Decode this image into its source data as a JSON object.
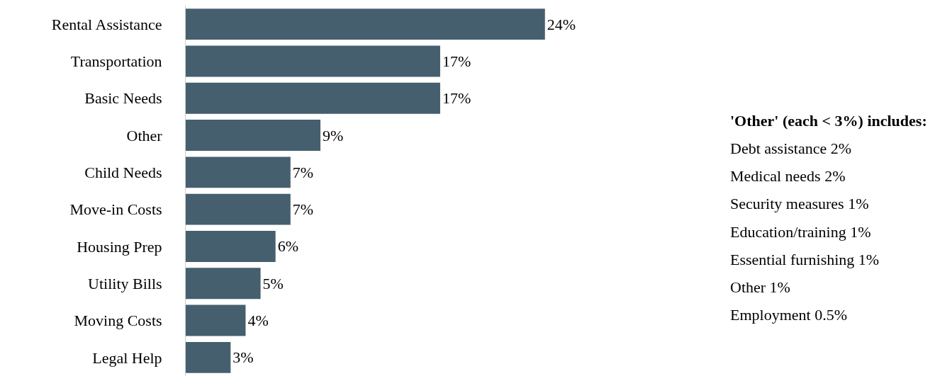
{
  "chart_data": {
    "type": "bar",
    "orientation": "horizontal",
    "categories": [
      "Rental Assistance",
      "Transportation",
      "Basic Needs",
      "Other",
      "Child Needs",
      "Move-in Costs",
      "Housing Prep",
      "Utility Bills",
      "Moving Costs",
      "Legal Help"
    ],
    "values": [
      24,
      17,
      17,
      9,
      7,
      7,
      6,
      5,
      4,
      3
    ],
    "value_labels": [
      "24%",
      "17%",
      "17%",
      "9%",
      "7%",
      "7%",
      "6%",
      "5%",
      "4%",
      "3%"
    ],
    "color": "#455f6e",
    "legend": false,
    "annotations": [
      "'Other' (each < 3%) includes:",
      "Debt assistance 2%",
      "Medical needs 2%",
      "Security measures 1%",
      "Education/training 1%",
      "Essential furnishing 1%",
      "Other 1%",
      "Employment 0.5%"
    ]
  }
}
